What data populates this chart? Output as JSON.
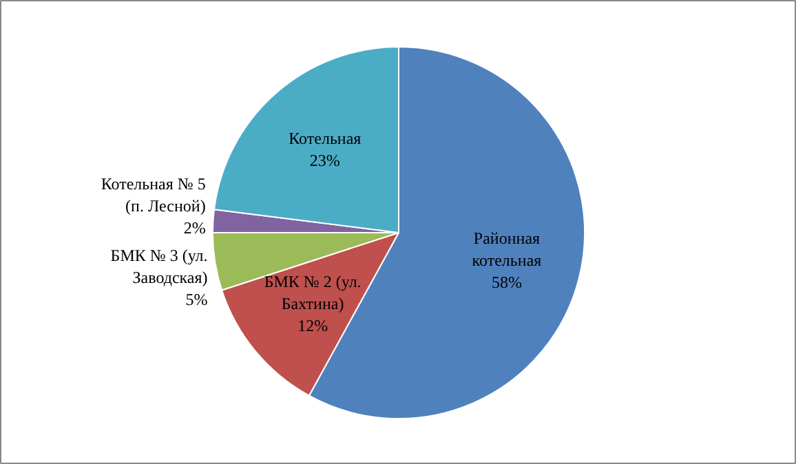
{
  "chart_data": {
    "type": "pie",
    "categories": [
      "Районная котельная",
      "БМК № 2 (ул. Бахтина)",
      "БМК № 3 (ул. Заводская)",
      "Котельная № 5 (п. Лесной)",
      "Котельная"
    ],
    "values": [
      58,
      12,
      5,
      2,
      23
    ],
    "value_labels": [
      "58%",
      "12%",
      "5%",
      "2%",
      "23%"
    ],
    "colors": [
      "#4f81bd",
      "#c0504d",
      "#9bbb59",
      "#8064a2",
      "#4bacc6"
    ]
  }
}
